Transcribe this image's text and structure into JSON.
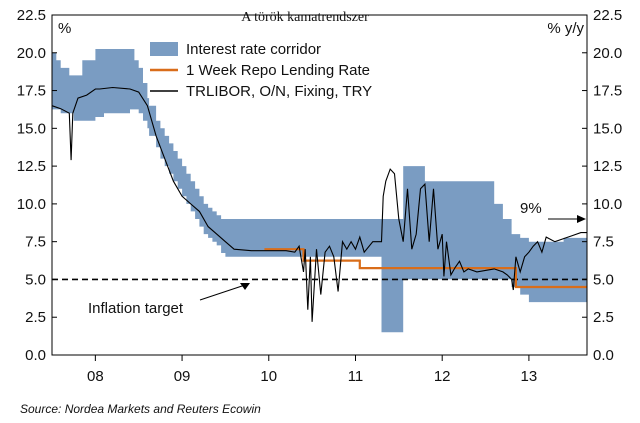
{
  "chart_data": {
    "type": "line",
    "title": "A török kamatrendszer",
    "ylabel_left": "%",
    "ylabel_right": "% y/y",
    "source": "Source: Nordea Markets and Reuters Ecowin",
    "ylim": [
      0,
      22.5
    ],
    "yticks": [
      "0.0",
      "2.5",
      "5.0",
      "7.5",
      "10.0",
      "12.5",
      "15.0",
      "17.5",
      "20.0",
      "22.5"
    ],
    "xlim": [
      2007.5,
      2013.67
    ],
    "x_categories": [
      "08",
      "09",
      "10",
      "11",
      "12",
      "13"
    ],
    "legend_position": "top-center",
    "grid": false,
    "colors": {
      "corridor": "#7a9cc2",
      "repo": "#d96d1a",
      "trlibor": "#000000",
      "target": "#000000"
    },
    "annotations": [
      {
        "label": "Inflation target",
        "x": 2010.4,
        "y": 5.0
      },
      {
        "label": "9%",
        "x": 2013.67,
        "y": 9.0
      }
    ],
    "series": [
      {
        "name": "Interest rate corridor",
        "kind": "band",
        "x": [
          2007.5,
          2007.55,
          2007.6,
          2007.7,
          2007.75,
          2007.85,
          2008.0,
          2008.1,
          2008.4,
          2008.45,
          2008.5,
          2008.55,
          2008.6,
          2008.62,
          2008.7,
          2008.75,
          2008.8,
          2008.85,
          2008.9,
          2008.95,
          2009.0,
          2009.05,
          2009.1,
          2009.15,
          2009.2,
          2009.25,
          2009.3,
          2009.35,
          2009.4,
          2009.45,
          2009.5,
          2009.55,
          2009.6,
          2009.7,
          2010.0,
          2010.3,
          2010.4,
          2010.5,
          2010.7,
          2011.0,
          2011.05,
          2011.1,
          2011.15,
          2011.2,
          2011.25,
          2011.3,
          2011.5,
          2011.55,
          2011.6,
          2011.65,
          2011.8,
          2012.0,
          2012.1,
          2012.2,
          2012.35,
          2012.5,
          2012.6,
          2012.7,
          2012.8,
          2012.9,
          2013.0,
          2013.2,
          2013.4,
          2013.67
        ],
        "upper": [
          20.0,
          19.5,
          19.0,
          18.5,
          18.5,
          19.5,
          20.25,
          20.25,
          20.25,
          19.5,
          19.0,
          18.0,
          17.0,
          16.5,
          15.5,
          15.0,
          14.5,
          14.0,
          13.5,
          13.0,
          12.5,
          12.0,
          11.5,
          11.0,
          10.5,
          10.0,
          9.75,
          9.5,
          9.25,
          9.0,
          9.0,
          9.0,
          9.0,
          9.0,
          9.0,
          9.0,
          9.0,
          9.0,
          9.0,
          9.0,
          9.0,
          9.0,
          9.0,
          9.0,
          9.0,
          9.0,
          9.0,
          12.5,
          12.5,
          12.5,
          11.5,
          11.5,
          11.5,
          11.5,
          11.5,
          11.5,
          10.0,
          9.0,
          8.0,
          7.75,
          7.5,
          7.5,
          7.75,
          7.75
        ],
        "lower": [
          16.25,
          16.25,
          16.0,
          16.0,
          15.5,
          15.5,
          15.75,
          16.0,
          16.25,
          16.25,
          16.0,
          15.5,
          15.0,
          14.5,
          13.75,
          13.0,
          12.5,
          12.0,
          11.5,
          11.0,
          10.5,
          10.0,
          9.5,
          9.0,
          8.5,
          8.0,
          7.75,
          7.5,
          7.25,
          6.75,
          6.5,
          6.5,
          6.5,
          6.5,
          6.5,
          6.5,
          6.5,
          6.5,
          6.5,
          6.5,
          6.5,
          6.5,
          6.5,
          6.5,
          6.5,
          1.5,
          1.5,
          5.0,
          5.0,
          5.0,
          5.0,
          5.0,
          5.0,
          5.0,
          5.0,
          5.0,
          5.0,
          5.0,
          4.5,
          4.0,
          3.5,
          3.5,
          3.5,
          3.5
        ]
      },
      {
        "name": "1 Week Repo Lending Rate",
        "kind": "line",
        "x": [
          2009.95,
          2010.35,
          2010.4,
          2011.0,
          2011.05,
          2012.8,
          2012.85,
          2013.67
        ],
        "y": [
          7.0,
          7.0,
          6.25,
          6.25,
          5.75,
          5.75,
          4.5,
          4.5
        ]
      },
      {
        "name": "TRLIBOR, O/N, Fixing, TRY",
        "kind": "line",
        "x": [
          2007.5,
          2007.6,
          2007.7,
          2007.72,
          2007.74,
          2007.8,
          2007.9,
          2008.0,
          2008.05,
          2008.2,
          2008.4,
          2008.5,
          2008.6,
          2008.7,
          2008.8,
          2008.9,
          2009.0,
          2009.1,
          2009.2,
          2009.3,
          2009.4,
          2009.5,
          2009.6,
          2009.8,
          2010.0,
          2010.2,
          2010.3,
          2010.35,
          2010.4,
          2010.42,
          2010.45,
          2010.48,
          2010.5,
          2010.55,
          2010.6,
          2010.65,
          2010.7,
          2010.75,
          2010.8,
          2010.85,
          2010.9,
          2010.95,
          2011.0,
          2011.05,
          2011.1,
          2011.2,
          2011.3,
          2011.32,
          2011.35,
          2011.4,
          2011.45,
          2011.5,
          2011.55,
          2011.6,
          2011.65,
          2011.7,
          2011.75,
          2011.8,
          2011.85,
          2011.9,
          2011.95,
          2012.0,
          2012.02,
          2012.05,
          2012.1,
          2012.15,
          2012.2,
          2012.25,
          2012.3,
          2012.4,
          2012.5,
          2012.6,
          2012.7,
          2012.75,
          2012.8,
          2012.82,
          2012.85,
          2012.9,
          2012.95,
          2013.0,
          2013.05,
          2013.1,
          2013.15,
          2013.2,
          2013.3,
          2013.4,
          2013.5,
          2013.6,
          2013.67
        ],
        "y": [
          16.5,
          16.3,
          16.0,
          12.9,
          16.0,
          17.0,
          17.2,
          17.6,
          17.6,
          17.7,
          17.6,
          17.4,
          16.5,
          14.5,
          13.0,
          11.5,
          10.5,
          10.0,
          9.5,
          8.5,
          8.0,
          7.5,
          7.0,
          6.9,
          6.9,
          6.9,
          6.8,
          7.2,
          5.5,
          7.0,
          3.0,
          6.5,
          2.2,
          7.0,
          4.0,
          6.8,
          7.2,
          6.5,
          4.2,
          7.5,
          7.0,
          7.5,
          7.0,
          7.8,
          6.8,
          7.5,
          7.5,
          10.5,
          11.5,
          12.3,
          12.0,
          9.0,
          7.5,
          11.0,
          7.0,
          8.0,
          11.0,
          11.3,
          7.5,
          11.0,
          7.0,
          8.0,
          5.2,
          7.5,
          5.3,
          5.8,
          6.2,
          5.5,
          5.7,
          5.5,
          5.6,
          5.7,
          5.5,
          5.3,
          5.0,
          4.3,
          6.5,
          5.5,
          6.5,
          6.8,
          7.2,
          7.5,
          6.8,
          7.8,
          7.5,
          7.7,
          7.9,
          8.1,
          8.1
        ]
      },
      {
        "name": "Inflation target",
        "kind": "line",
        "x": [
          2007.5,
          2013.67
        ],
        "y": [
          5.0,
          5.0
        ]
      }
    ]
  }
}
